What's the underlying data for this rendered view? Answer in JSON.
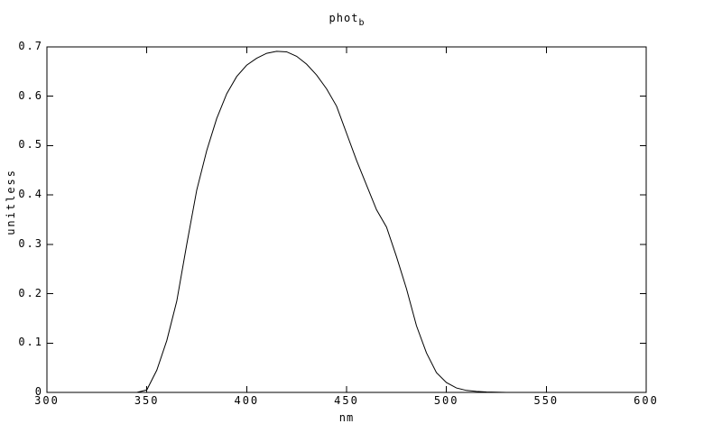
{
  "window": {
    "background": "#ffffff"
  },
  "chart": {
    "title_main": "phot",
    "title_sub": "b",
    "xlabel": "nm",
    "ylabel": "unitless",
    "axis_color": "#000000",
    "curve_color": "#000000",
    "x_tick_labels": [
      "300",
      "350",
      "400",
      "450",
      "500",
      "550",
      "600"
    ],
    "y_tick_labels": [
      "0",
      "0.1",
      "0.2",
      "0.3",
      "0.4",
      "0.5",
      "0.6",
      "0.7"
    ]
  },
  "chart_data": {
    "type": "line",
    "title": "phot_b",
    "xlabel": "nm",
    "ylabel": "unitless",
    "xlim": [
      300,
      600
    ],
    "ylim": [
      0,
      0.7
    ],
    "x_ticks": [
      300,
      350,
      400,
      450,
      500,
      550,
      600
    ],
    "y_ticks": [
      0,
      0.1,
      0.2,
      0.3,
      0.4,
      0.5,
      0.6,
      0.7
    ],
    "grid": false,
    "legend_position": "none",
    "ticks_mirrored": true,
    "series": [
      {
        "name": "phot_b",
        "x": [
          345,
          350,
          355,
          360,
          365,
          370,
          375,
          380,
          385,
          390,
          395,
          400,
          405,
          410,
          415,
          420,
          425,
          430,
          435,
          440,
          445,
          450,
          455,
          460,
          465,
          470,
          475,
          480,
          485,
          490,
          495,
          500,
          505,
          510,
          515,
          520,
          525,
          530
        ],
        "y": [
          0.0,
          0.005,
          0.045,
          0.105,
          0.185,
          0.3,
          0.41,
          0.49,
          0.555,
          0.605,
          0.64,
          0.663,
          0.677,
          0.687,
          0.691,
          0.69,
          0.681,
          0.665,
          0.643,
          0.615,
          0.58,
          0.525,
          0.47,
          0.42,
          0.37,
          0.335,
          0.275,
          0.21,
          0.135,
          0.08,
          0.04,
          0.02,
          0.009,
          0.004,
          0.002,
          0.001,
          0.0005,
          0.0
        ]
      }
    ]
  }
}
